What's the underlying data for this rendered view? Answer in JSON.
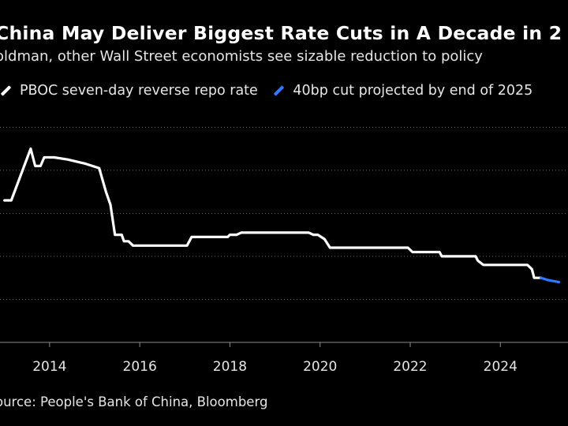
{
  "header": {
    "title": "China May Deliver Biggest Rate Cuts in A Decade in 2",
    "subtitle": "oldman, other Wall Street economists see sizable reduction to policy"
  },
  "legend": [
    {
      "label": "PBOC seven-day reverse repo rate",
      "color": "#ffffff"
    },
    {
      "label": "40bp cut projected by end of 2025",
      "color": "#2f7bff"
    }
  ],
  "footer": {
    "source": "ource: People's Bank of China, Bloomberg"
  },
  "chart_data": {
    "type": "line",
    "title": "China May Deliver Biggest Rate Cuts in A Decade in 2",
    "xlabel": "",
    "ylabel": "",
    "xlim": [
      2012.9,
      2025.5
    ],
    "ylim": [
      0,
      5.5
    ],
    "grid_values": [
      1,
      2,
      3,
      4,
      5
    ],
    "x_ticks": [
      2014,
      2016,
      2018,
      2020,
      2022,
      2024
    ],
    "x_tick_labels": [
      "2014",
      "2016",
      "2018",
      "2020",
      "2022",
      "2024"
    ],
    "series": [
      {
        "name": "PBOC seven-day reverse repo rate",
        "color": "#ffffff",
        "points": [
          [
            2013.0,
            3.3
          ],
          [
            2013.15,
            3.3
          ],
          [
            2013.58,
            4.5
          ],
          [
            2013.68,
            4.1
          ],
          [
            2013.8,
            4.1
          ],
          [
            2013.88,
            4.3
          ],
          [
            2014.1,
            4.3
          ],
          [
            2014.4,
            4.25
          ],
          [
            2014.8,
            4.15
          ],
          [
            2015.1,
            4.05
          ],
          [
            2015.25,
            3.5
          ],
          [
            2015.35,
            3.2
          ],
          [
            2015.45,
            2.5
          ],
          [
            2015.6,
            2.5
          ],
          [
            2015.65,
            2.35
          ],
          [
            2015.75,
            2.35
          ],
          [
            2015.85,
            2.25
          ],
          [
            2017.05,
            2.25
          ],
          [
            2017.15,
            2.45
          ],
          [
            2017.95,
            2.45
          ],
          [
            2018.0,
            2.5
          ],
          [
            2018.15,
            2.5
          ],
          [
            2018.25,
            2.55
          ],
          [
            2019.75,
            2.55
          ],
          [
            2019.85,
            2.5
          ],
          [
            2019.95,
            2.5
          ],
          [
            2020.1,
            2.4
          ],
          [
            2020.22,
            2.2
          ],
          [
            2021.95,
            2.2
          ],
          [
            2022.05,
            2.1
          ],
          [
            2022.65,
            2.1
          ],
          [
            2022.7,
            2.0
          ],
          [
            2023.45,
            2.0
          ],
          [
            2023.5,
            1.9
          ],
          [
            2023.62,
            1.8
          ],
          [
            2024.6,
            1.8
          ],
          [
            2024.7,
            1.7
          ],
          [
            2024.75,
            1.5
          ],
          [
            2024.9,
            1.5
          ]
        ]
      },
      {
        "name": "40bp cut projected by end of 2025",
        "color": "#2f7bff",
        "points": [
          [
            2024.9,
            1.5
          ],
          [
            2025.05,
            1.45
          ],
          [
            2025.3,
            1.4
          ]
        ]
      }
    ]
  }
}
